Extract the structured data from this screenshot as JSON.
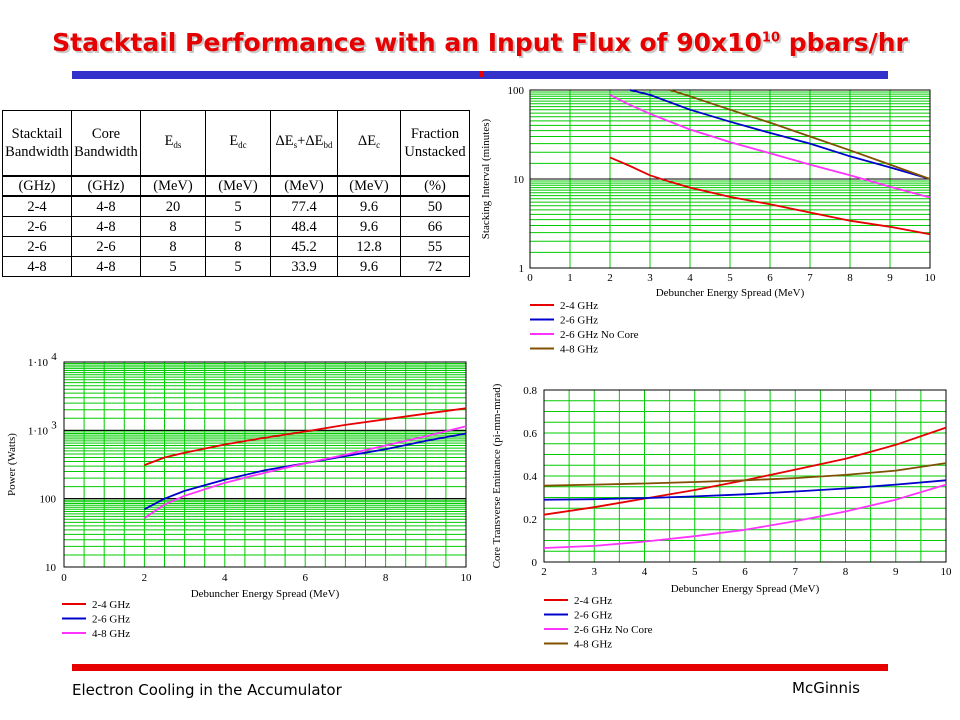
{
  "title": "Stacktail Performance with an Input Flux of 90x10",
  "title_sup": "10",
  "title_suffix": " pbars/hr",
  "footer": {
    "left": "Electron Cooling in the Accumulator",
    "right": "McGinnis"
  },
  "colors": {
    "title": "#e60000",
    "blue_bar": "#3333cc",
    "red_bar": "#e60000",
    "grid": "#00cc00",
    "red": "#e60000",
    "blue": "#0000cc",
    "magenta": "#ff33ff",
    "brown": "#805000"
  },
  "table": {
    "headers": [
      "Stacktail Bandwidth",
      "Core Bandwidth",
      "E_ds",
      "E_dc",
      "ΔE_s+ΔE_bd",
      "ΔE_c",
      "Fraction Unstacked"
    ],
    "units": [
      "(GHz)",
      "(GHz)",
      "(MeV)",
      "(MeV)",
      "(MeV)",
      "(MeV)",
      "(%)"
    ],
    "rows": [
      [
        "2-4",
        "4-8",
        "20",
        "5",
        "77.4",
        "9.6",
        "50"
      ],
      [
        "2-6",
        "4-8",
        "8",
        "5",
        "48.4",
        "9.6",
        "66"
      ],
      [
        "2-6",
        "2-6",
        "8",
        "8",
        "45.2",
        "12.8",
        "55"
      ],
      [
        "4-8",
        "4-8",
        "5",
        "5",
        "33.9",
        "9.6",
        "72"
      ]
    ]
  },
  "chart_data": [
    {
      "type": "line",
      "id": "stacking",
      "xlabel": "Debuncher Energy Spread (MeV)",
      "ylabel": "Stacking Interval (minutes)",
      "xlim": [
        0,
        10
      ],
      "ylim": [
        1,
        100
      ],
      "yscale": "log",
      "xticks": [
        "0",
        "1",
        "2",
        "3",
        "4",
        "5",
        "6",
        "7",
        "8",
        "9",
        "10"
      ],
      "yticks": [
        "1",
        "10",
        "100"
      ],
      "grid": true,
      "legend": "below",
      "series": [
        {
          "name": "2-4 GHz",
          "color": "#e60000",
          "x": [
            2,
            2.5,
            3,
            3.5,
            4,
            5,
            6,
            7,
            8,
            9,
            10
          ],
          "y": [
            17.5,
            14,
            11,
            9.3,
            8,
            6.3,
            5.2,
            4.2,
            3.4,
            2.9,
            2.4
          ]
        },
        {
          "name": "2-6 GHz",
          "color": "#0000cc",
          "x": [
            2.5,
            3,
            4,
            5,
            6,
            7,
            8,
            9,
            10
          ],
          "y": [
            100,
            88,
            60,
            44,
            33,
            25,
            18,
            13.5,
            10
          ]
        },
        {
          "name": "2-6 GHz No Core",
          "color": "#ff33ff",
          "x": [
            2,
            2.5,
            3,
            4,
            5,
            6,
            7,
            8,
            9,
            10
          ],
          "y": [
            88,
            68,
            54,
            36,
            26,
            19.5,
            14.5,
            11,
            8.2,
            6.2
          ]
        },
        {
          "name": "4-8 GHz",
          "color": "#805000",
          "x": [
            3.5,
            4,
            5,
            6,
            7,
            8,
            9,
            10
          ],
          "y": [
            100,
            85,
            60,
            43,
            30,
            21,
            14.5,
            10
          ]
        }
      ]
    },
    {
      "type": "line",
      "id": "power",
      "xlabel": "Debuncher Energy Spread (MeV)",
      "ylabel": "Power (Watts)",
      "xlim": [
        0,
        10
      ],
      "ylim": [
        10,
        10000
      ],
      "yscale": "log",
      "xticks": [
        "0",
        "2",
        "4",
        "6",
        "8",
        "10"
      ],
      "yticks": [
        {
          "label": "10",
          "sup": ""
        },
        {
          "label": "100",
          "sup": ""
        },
        {
          "label": "1·10",
          "sup": "3"
        },
        {
          "label": "1·10",
          "sup": "4"
        }
      ],
      "grid": true,
      "legend": "below",
      "series": [
        {
          "name": "2-4 GHz",
          "color": "#e60000",
          "x": [
            2,
            2.5,
            3,
            4,
            5,
            6,
            7,
            8,
            9,
            10
          ],
          "y": [
            310,
            400,
            470,
            620,
            780,
            960,
            1200,
            1450,
            1750,
            2100
          ]
        },
        {
          "name": "2-6 GHz",
          "color": "#0000cc",
          "x": [
            2,
            2.5,
            3,
            4,
            5,
            6,
            7,
            8,
            9,
            10
          ],
          "y": [
            70,
            100,
            130,
            190,
            260,
            330,
            420,
            530,
            700,
            900
          ]
        },
        {
          "name": "4-8 GHz",
          "color": "#ff33ff",
          "x": [
            2,
            2.5,
            3,
            4,
            5,
            6,
            7,
            8,
            9,
            10
          ],
          "y": [
            52,
            82,
            110,
            170,
            240,
            330,
            440,
            600,
            820,
            1150
          ]
        }
      ]
    },
    {
      "type": "line",
      "id": "emittance",
      "xlabel": "Debuncher Energy Spread (MeV)",
      "ylabel": "Core Transverse Emittance (pi-mm-mrad)",
      "xlim": [
        2,
        10
      ],
      "ylim": [
        0,
        0.8
      ],
      "xticks": [
        "2",
        "3",
        "4",
        "5",
        "6",
        "7",
        "8",
        "9",
        "10"
      ],
      "yticks": [
        "0",
        "0.2",
        "0.4",
        "0.6",
        "0.8"
      ],
      "grid": true,
      "legend": "below",
      "series": [
        {
          "name": "2-4 GHz",
          "color": "#e60000",
          "x": [
            2,
            3,
            4,
            5,
            6,
            7,
            8,
            9,
            10
          ],
          "y": [
            0.22,
            0.255,
            0.295,
            0.335,
            0.38,
            0.43,
            0.48,
            0.545,
            0.625
          ]
        },
        {
          "name": "2-6 GHz",
          "color": "#0000cc",
          "x": [
            2,
            3,
            4,
            5,
            6,
            7,
            8,
            9,
            10
          ],
          "y": [
            0.29,
            0.292,
            0.297,
            0.305,
            0.315,
            0.328,
            0.342,
            0.36,
            0.38
          ]
        },
        {
          "name": "2-6 GHz No Core",
          "color": "#ff33ff",
          "x": [
            2,
            3,
            4,
            5,
            6,
            7,
            8,
            9,
            10
          ],
          "y": [
            0.065,
            0.075,
            0.095,
            0.12,
            0.15,
            0.19,
            0.235,
            0.29,
            0.36
          ]
        },
        {
          "name": "4-8 GHz",
          "color": "#805000",
          "x": [
            2,
            3,
            4,
            5,
            6,
            7,
            8,
            9,
            10
          ],
          "y": [
            0.355,
            0.36,
            0.365,
            0.372,
            0.38,
            0.39,
            0.405,
            0.425,
            0.46
          ]
        }
      ]
    }
  ]
}
